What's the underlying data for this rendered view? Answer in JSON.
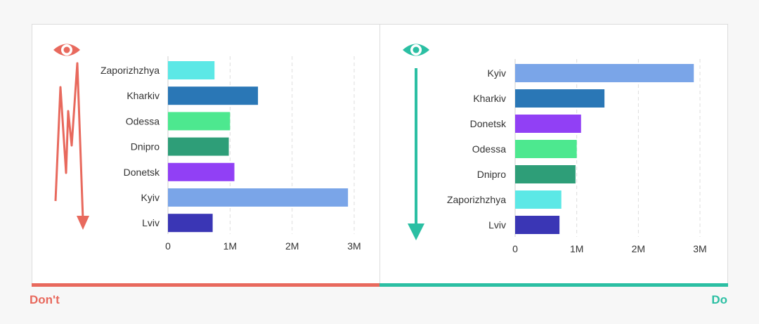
{
  "labels": {
    "dont": "Don't",
    "do": "Do"
  },
  "colors": {
    "dont": "#e8695d",
    "do": "#2bbfa3"
  },
  "icons": {
    "dont_eye": "eye-icon",
    "do_eye": "eye-icon"
  },
  "chart_data": [
    {
      "type": "bar",
      "orientation": "horizontal",
      "panel": "dont",
      "categories": [
        "Zaporizhzhya",
        "Kharkiv",
        "Odessa",
        "Dnipro",
        "Donetsk",
        "Kyiv",
        "Lviv"
      ],
      "values": [
        750000,
        1450000,
        1000000,
        980000,
        1070000,
        2900000,
        720000
      ],
      "colors": [
        "#5ce8e6",
        "#2a77b6",
        "#4de88f",
        "#2e9e78",
        "#9140f5",
        "#7aa5e8",
        "#3a36b5"
      ],
      "xlim": [
        0,
        3000000
      ],
      "ticks": [
        "0",
        "1M",
        "2M",
        "3M"
      ],
      "tick_values": [
        0,
        1000000,
        2000000,
        3000000
      ],
      "grid": true
    },
    {
      "type": "bar",
      "orientation": "horizontal",
      "panel": "do",
      "categories": [
        "Kyiv",
        "Kharkiv",
        "Donetsk",
        "Odessa",
        "Dnipro",
        "Zaporizhzhya",
        "Lviv"
      ],
      "values": [
        2900000,
        1450000,
        1070000,
        1000000,
        980000,
        750000,
        720000
      ],
      "colors": [
        "#7aa5e8",
        "#2a77b6",
        "#9140f5",
        "#4de88f",
        "#2e9e78",
        "#5ce8e6",
        "#3a36b5"
      ],
      "xlim": [
        0,
        3000000
      ],
      "ticks": [
        "0",
        "1M",
        "2M",
        "3M"
      ],
      "tick_values": [
        0,
        1000000,
        2000000,
        3000000
      ],
      "grid": true
    }
  ]
}
